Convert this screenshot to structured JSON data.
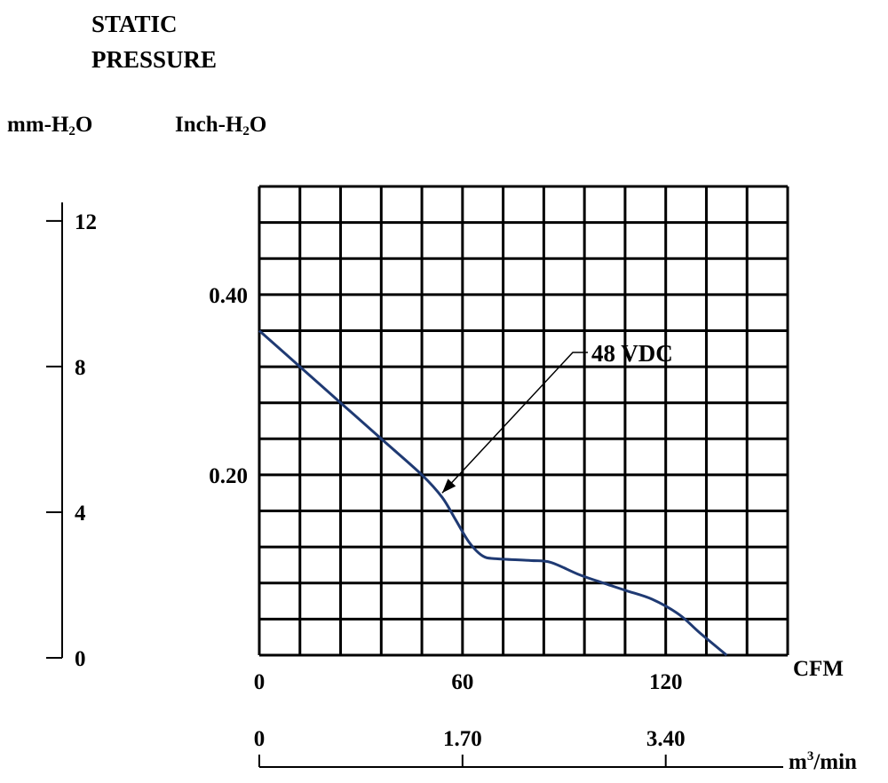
{
  "chart_data": {
    "type": "line",
    "title_lines": [
      "STATIC",
      "PRESSURE"
    ],
    "left_axis": {
      "unit_prefix": "mm-H",
      "unit_sub": "2",
      "unit_suffix": "O",
      "ticks": [
        {
          "label": "12",
          "value": 12
        },
        {
          "label": "8",
          "value": 8
        },
        {
          "label": "4",
          "value": 4
        },
        {
          "label": "0",
          "value": 0
        }
      ],
      "range": [
        0,
        12.8
      ]
    },
    "y_axis": {
      "unit_prefix": "Inch-H",
      "unit_sub": "2",
      "unit_suffix": "O",
      "ticks": [
        {
          "label": "0.40",
          "value": 0.4
        },
        {
          "label": "0.20",
          "value": 0.2
        }
      ],
      "range": [
        0,
        0.52
      ]
    },
    "x_axis": {
      "unit": "CFM",
      "ticks": [
        {
          "label": "0",
          "value": 0
        },
        {
          "label": "60",
          "value": 60
        },
        {
          "label": "120",
          "value": 120
        }
      ],
      "range": [
        0,
        156
      ]
    },
    "x2_axis": {
      "unit_prefix": "m",
      "unit_sup": "3",
      "unit_suffix": "/min",
      "ticks": [
        {
          "label": "0",
          "value": 0
        },
        {
          "label": "1.70",
          "value": 1.7
        },
        {
          "label": "3.40",
          "value": 3.4
        }
      ],
      "range": [
        0,
        4.42
      ]
    },
    "grid": {
      "columns": 13,
      "rows": 13
    },
    "series": [
      {
        "name": "48 VDC",
        "color": "#1f3a73",
        "points": [
          [
            0,
            0.36
          ],
          [
            12,
            0.32
          ],
          [
            24,
            0.28
          ],
          [
            36,
            0.24
          ],
          [
            48,
            0.2
          ],
          [
            54,
            0.175
          ],
          [
            58,
            0.15
          ],
          [
            62,
            0.125
          ],
          [
            66,
            0.11
          ],
          [
            70,
            0.107
          ],
          [
            80,
            0.105
          ],
          [
            86,
            0.103
          ],
          [
            94,
            0.09
          ],
          [
            100,
            0.082
          ],
          [
            108,
            0.072
          ],
          [
            116,
            0.062
          ],
          [
            124,
            0.045
          ],
          [
            130,
            0.025
          ],
          [
            138,
            0.0
          ]
        ]
      }
    ],
    "annotation": {
      "text": "48 VDC",
      "target": [
        54,
        0.18
      ]
    }
  }
}
